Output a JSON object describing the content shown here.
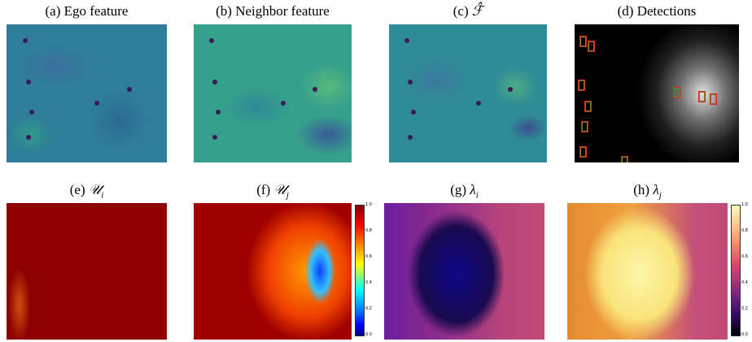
{
  "panels": [
    {
      "label": "(a)",
      "text": "Ego feature"
    },
    {
      "label": "(b)",
      "text": "Neighbor feature"
    },
    {
      "label": "(c)",
      "symbol": "ℱ̂"
    },
    {
      "label": "(d)",
      "text": "Detections"
    },
    {
      "label": "(e)",
      "symbol": "𝒰",
      "sub": "i"
    },
    {
      "label": "(f)",
      "symbol": "𝒰",
      "sub": "j"
    },
    {
      "label": "(g)",
      "symbol": "λ",
      "sub": "i"
    },
    {
      "label": "(h)",
      "symbol": "λ",
      "sub": "j"
    }
  ],
  "colorbars": [
    {
      "ticks": [
        "0.0",
        "0.2",
        "0.4",
        "0.6",
        "0.8",
        "1.0"
      ]
    },
    {
      "ticks": [
        "0.0",
        "0.2",
        "0.4",
        "0.6",
        "0.8",
        "1.0"
      ]
    }
  ]
}
